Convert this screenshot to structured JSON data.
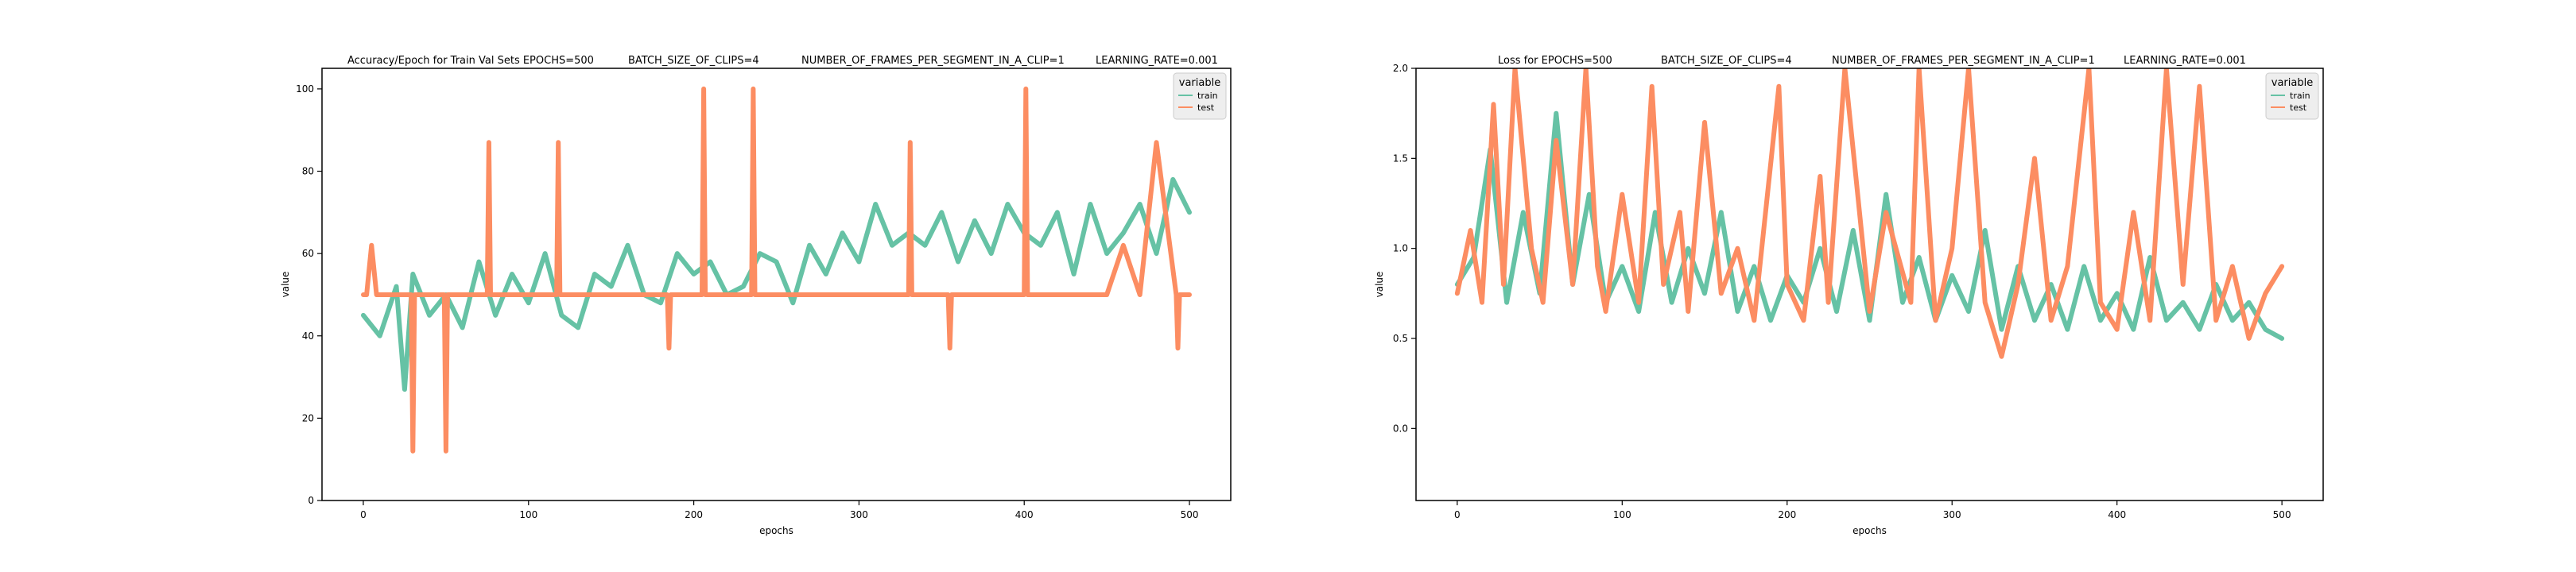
{
  "chart_data": [
    {
      "type": "line",
      "title_parts": [
        "Accuracy/Epoch for Train Val Sets EPOCHS=500",
        "BATCH_SIZE_OF_CLIPS=4",
        "NUMBER_OF_FRAMES_PER_SEGMENT_IN_A_CLIP=1",
        "LEARNING_RATE=0.001"
      ],
      "xlabel": "epochs",
      "ylabel": "value",
      "xlim": [
        -25,
        525
      ],
      "ylim": [
        0,
        105
      ],
      "xticks": [
        0,
        100,
        200,
        300,
        400,
        500
      ],
      "yticks": [
        0,
        20,
        40,
        60,
        80,
        100
      ],
      "grid": false,
      "legend": {
        "title": "variable",
        "placement": "top-right"
      },
      "series": [
        {
          "name": "train",
          "color": "#66c2a5",
          "x": [
            0,
            10,
            20,
            25,
            30,
            40,
            50,
            60,
            70,
            80,
            90,
            100,
            110,
            120,
            130,
            140,
            150,
            160,
            170,
            180,
            190,
            200,
            210,
            220,
            230,
            240,
            250,
            260,
            270,
            280,
            290,
            300,
            310,
            320,
            330,
            340,
            350,
            360,
            370,
            380,
            390,
            400,
            410,
            420,
            430,
            440,
            450,
            460,
            470,
            480,
            490,
            500
          ],
          "y": [
            45,
            40,
            52,
            27,
            55,
            45,
            50,
            42,
            58,
            45,
            55,
            48,
            60,
            45,
            42,
            55,
            52,
            62,
            50,
            48,
            60,
            55,
            58,
            50,
            52,
            60,
            58,
            48,
            62,
            55,
            65,
            58,
            72,
            62,
            65,
            62,
            70,
            58,
            68,
            60,
            72,
            65,
            62,
            70,
            55,
            72,
            60,
            65,
            72,
            60,
            78,
            70
          ]
        },
        {
          "name": "test",
          "color": "#fc8d62",
          "x": [
            0,
            2,
            5,
            8,
            12,
            20,
            29,
            30,
            31,
            40,
            49,
            50,
            51,
            60,
            75,
            76,
            77,
            80,
            100,
            117,
            118,
            119,
            125,
            150,
            184,
            185,
            186,
            200,
            205,
            206,
            207,
            220,
            235,
            236,
            237,
            250,
            300,
            330,
            331,
            332,
            350,
            354,
            355,
            356,
            380,
            400,
            401,
            402,
            420,
            450,
            460,
            470,
            480,
            492,
            493,
            494,
            500
          ],
          "y": [
            50,
            50,
            62,
            50,
            50,
            50,
            50,
            12,
            50,
            50,
            50,
            12,
            50,
            50,
            50,
            87,
            50,
            50,
            50,
            50,
            87,
            50,
            50,
            50,
            50,
            37,
            50,
            50,
            50,
            100,
            50,
            50,
            50,
            100,
            50,
            50,
            50,
            50,
            87,
            50,
            50,
            50,
            37,
            50,
            50,
            50,
            100,
            50,
            50,
            50,
            62,
            50,
            87,
            50,
            37,
            50,
            50
          ]
        }
      ]
    },
    {
      "type": "line",
      "title_parts": [
        "Loss for  EPOCHS=500",
        "BATCH_SIZE_OF_CLIPS=4",
        "NUMBER_OF_FRAMES_PER_SEGMENT_IN_A_CLIP=1",
        "LEARNING_RATE=0.001"
      ],
      "xlabel": "epochs",
      "ylabel": "value",
      "xlim": [
        -25,
        525
      ],
      "ylim": [
        -0.4,
        2.0
      ],
      "xticks": [
        0,
        100,
        200,
        300,
        400,
        500
      ],
      "yticks": [
        0.0,
        0.5,
        1.0,
        1.5,
        2.0
      ],
      "grid": false,
      "legend": {
        "title": "variable",
        "placement": "top-right"
      },
      "series": [
        {
          "name": "train",
          "color": "#66c2a5",
          "x": [
            0,
            10,
            20,
            30,
            40,
            50,
            60,
            70,
            80,
            90,
            100,
            110,
            120,
            130,
            140,
            150,
            160,
            170,
            180,
            190,
            200,
            210,
            220,
            230,
            240,
            250,
            260,
            270,
            280,
            290,
            300,
            310,
            320,
            330,
            340,
            350,
            360,
            370,
            380,
            390,
            400,
            410,
            420,
            430,
            440,
            450,
            460,
            470,
            480,
            490,
            500
          ],
          "y": [
            0.8,
            0.95,
            1.55,
            0.7,
            1.2,
            0.75,
            1.75,
            0.8,
            1.3,
            0.7,
            0.9,
            0.65,
            1.2,
            0.7,
            1.0,
            0.75,
            1.2,
            0.65,
            0.9,
            0.6,
            0.85,
            0.7,
            1.0,
            0.65,
            1.1,
            0.6,
            1.3,
            0.7,
            0.95,
            0.6,
            0.85,
            0.65,
            1.1,
            0.55,
            0.9,
            0.6,
            0.8,
            0.55,
            0.9,
            0.6,
            0.75,
            0.55,
            0.95,
            0.6,
            0.7,
            0.55,
            0.8,
            0.6,
            0.7,
            0.55,
            0.5
          ]
        },
        {
          "name": "test",
          "color": "#fc8d62",
          "x": [
            0,
            8,
            15,
            22,
            28,
            35,
            45,
            52,
            60,
            70,
            78,
            85,
            90,
            100,
            110,
            118,
            125,
            135,
            140,
            150,
            160,
            170,
            180,
            195,
            200,
            210,
            220,
            225,
            235,
            250,
            260,
            275,
            280,
            290,
            300,
            310,
            320,
            330,
            340,
            350,
            360,
            370,
            383,
            390,
            400,
            410,
            420,
            430,
            440,
            450,
            460,
            470,
            480,
            490,
            500
          ],
          "y": [
            0.75,
            1.1,
            0.7,
            1.8,
            0.8,
            2.0,
            1.0,
            0.7,
            1.6,
            0.8,
            2.0,
            0.9,
            0.65,
            1.3,
            0.7,
            1.9,
            0.8,
            1.2,
            0.65,
            1.7,
            0.75,
            1.0,
            0.6,
            1.9,
            0.8,
            0.6,
            1.4,
            0.7,
            2.0,
            0.65,
            1.2,
            0.7,
            2.0,
            0.6,
            1.0,
            2.0,
            0.7,
            0.4,
            0.8,
            1.5,
            0.6,
            0.9,
            2.0,
            0.7,
            0.55,
            1.2,
            0.6,
            2.0,
            0.8,
            1.9,
            0.6,
            0.9,
            0.5,
            0.75,
            0.9
          ]
        }
      ]
    }
  ]
}
